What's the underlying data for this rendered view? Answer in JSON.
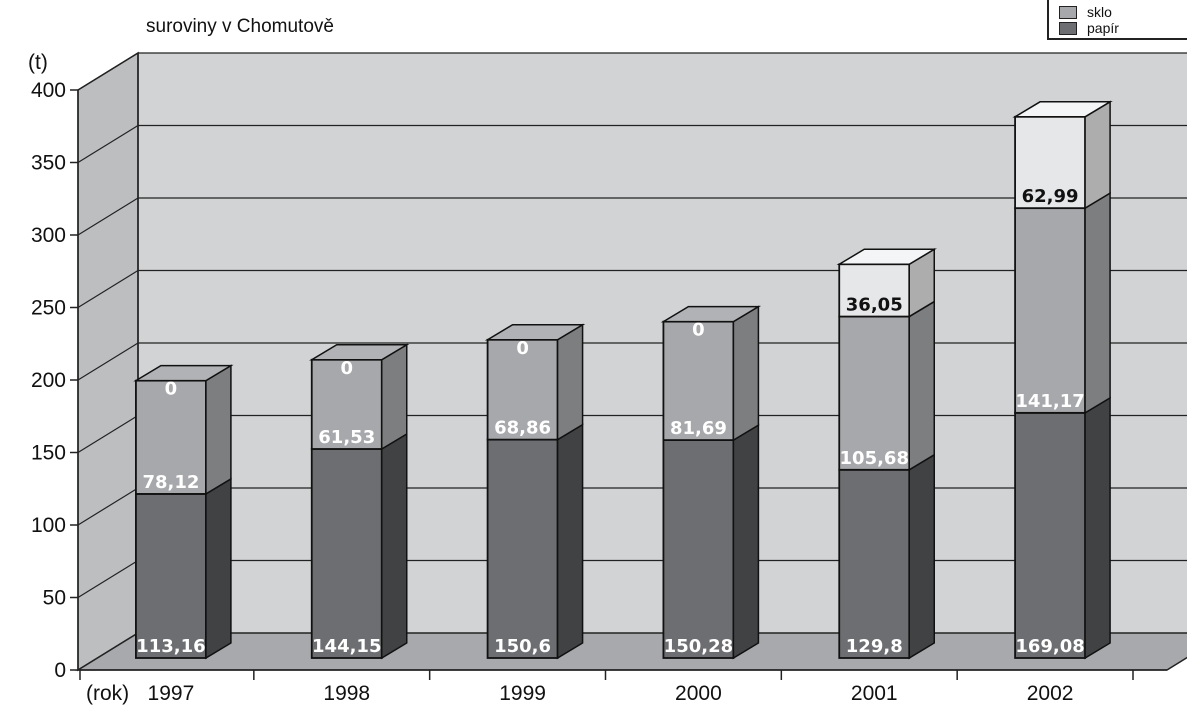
{
  "chart_data": {
    "type": "bar",
    "stacked": true,
    "three_d": true,
    "title": "suroviny v Chomutově",
    "ylabel": "(t)",
    "xlabel": "(rok)",
    "ylim": [
      0,
      400
    ],
    "yticks": [
      0,
      50,
      100,
      150,
      200,
      250,
      300,
      350,
      400
    ],
    "grid": true,
    "legend_position": "top-right",
    "categories": [
      "1997",
      "1998",
      "1999",
      "2000",
      "2001",
      "2002"
    ],
    "series": [
      {
        "name": "papír",
        "values": [
          113.16,
          144.15,
          150.6,
          150.28,
          129.8,
          169.08
        ],
        "labels": [
          "113,16",
          "144,15",
          "150,6",
          "150,28",
          "129,8",
          "169,08"
        ],
        "color": "#6d6e71"
      },
      {
        "name": "sklo",
        "values": [
          78.12,
          61.53,
          68.86,
          81.69,
          105.68,
          141.17
        ],
        "labels": [
          "78,12",
          "61,53",
          "68,86",
          "81,69",
          "105,68",
          "141,17"
        ],
        "color": "#a7a8ab"
      },
      {
        "values": [
          0,
          0,
          0,
          0,
          36.05,
          62.99
        ],
        "labels": [
          "0",
          "0",
          "0",
          "0",
          "36,05",
          "62,99"
        ],
        "color": "#e6e7e8"
      }
    ]
  },
  "legend": {
    "items": [
      {
        "label": "sklo",
        "color": "#a7a8ab"
      },
      {
        "label": "papír",
        "color": "#6d6e71"
      }
    ]
  }
}
